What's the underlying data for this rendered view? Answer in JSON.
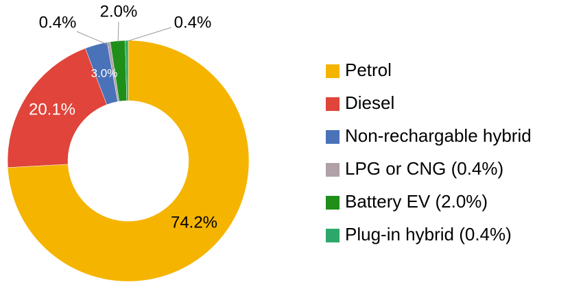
{
  "chart_data": {
    "type": "donut",
    "categories": [
      "Petrol",
      "Diesel",
      "Non-rechargable hybrid",
      "LPG or CNG (0.4%)",
      "Battery EV (2.0%)",
      "Plug-in hybrid (0.4%)"
    ],
    "values": [
      74.2,
      20.1,
      3.0,
      0.4,
      2.0,
      0.4
    ],
    "value_labels": [
      "74.2%",
      "20.1%",
      "3.0%",
      "0.4%",
      "2.0%",
      "0.4%"
    ],
    "colors": [
      "#f5b400",
      "#e0443a",
      "#4a72b8",
      "#b0a0a8",
      "#1f8f1a",
      "#2ea86a"
    ],
    "legend": "right"
  }
}
